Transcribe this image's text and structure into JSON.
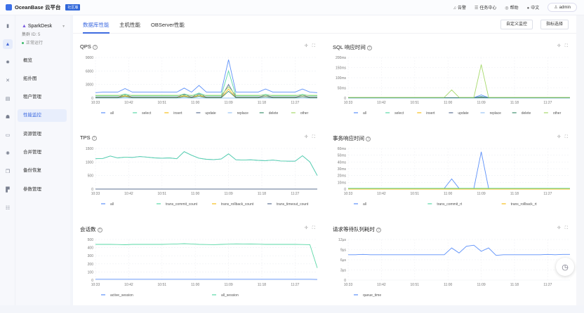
{
  "header": {
    "app_title": "OceanBase 云平台",
    "edition_badge": "社区版",
    "items": [
      {
        "icon": "bell-icon",
        "glyph": "♫",
        "label": "告警"
      },
      {
        "icon": "list-icon",
        "glyph": "☰",
        "label": "任务中心"
      },
      {
        "icon": "help-pin-icon",
        "glyph": "◎",
        "label": "帮助"
      },
      {
        "icon": "globe-icon",
        "glyph": "●",
        "label": "中文"
      }
    ],
    "user": "admin"
  },
  "rail": [
    {
      "icon": "chart-icon",
      "glyph": "▮"
    },
    {
      "icon": "cluster-icon",
      "glyph": "▲",
      "active": true
    },
    {
      "icon": "gear-icon",
      "glyph": "✹"
    },
    {
      "icon": "topology-icon",
      "glyph": "✕"
    },
    {
      "icon": "table-icon",
      "glyph": "▤"
    },
    {
      "icon": "user-icon",
      "glyph": "☗"
    },
    {
      "icon": "storage-icon",
      "glyph": "▭"
    },
    {
      "icon": "settings-icon",
      "glyph": "✺"
    },
    {
      "icon": "copy-icon",
      "glyph": "❐"
    },
    {
      "icon": "doc-icon",
      "glyph": "▛"
    },
    {
      "icon": "sliders-icon",
      "glyph": "☷"
    }
  ],
  "cluster": {
    "name": "SparkDesk",
    "id_label": "集群 ID: 5",
    "status": "正常运行"
  },
  "nav": [
    "概览",
    "拓扑图",
    "租户管理",
    "性能监控",
    "资源管理",
    "合并管理",
    "备份恢复",
    "参数管理"
  ],
  "nav_active": 3,
  "tabs": [
    "数据库性能",
    "主机性能",
    "OBServer性能"
  ],
  "tab_active": 0,
  "buttons": {
    "custom": "自定义监控",
    "metric": "指标选择"
  },
  "x_ticks": [
    "10:33",
    "10:42",
    "10:51",
    "11:00",
    "11:09",
    "11:18",
    "11:27"
  ],
  "chart_data": [
    {
      "type": "line",
      "title": "QPS",
      "ylim": [
        0,
        9000
      ],
      "yticks": [
        0,
        3000,
        6000,
        9000
      ],
      "ytick_labels": [
        "0",
        "3000",
        "6000",
        "9000"
      ],
      "series": [
        {
          "name": "all",
          "color": "#5b8ff9",
          "values": [
            1200,
            1300,
            1300,
            1300,
            2100,
            1300,
            1300,
            1300,
            1300,
            1300,
            1300,
            1300,
            2200,
            1300,
            2800,
            1300,
            1300,
            1300,
            8500,
            1300,
            1300,
            1300,
            1300,
            2000,
            1300,
            1300,
            1300,
            1300,
            2000,
            1300,
            1200
          ]
        },
        {
          "name": "select",
          "color": "#5ad8a6",
          "values": [
            500,
            500,
            500,
            500,
            900,
            500,
            500,
            500,
            500,
            500,
            500,
            500,
            900,
            500,
            1100,
            500,
            500,
            500,
            6000,
            500,
            500,
            500,
            500,
            800,
            500,
            500,
            500,
            500,
            800,
            500,
            500
          ]
        },
        {
          "name": "insert",
          "color": "#f6bd16",
          "values": [
            100,
            100,
            100,
            100,
            500,
            100,
            100,
            100,
            100,
            100,
            100,
            100,
            500,
            100,
            600,
            100,
            100,
            100,
            2000,
            100,
            100,
            100,
            100,
            300,
            100,
            100,
            100,
            100,
            300,
            100,
            100
          ]
        },
        {
          "name": "update",
          "color": "#5d7092",
          "values": [
            200,
            200,
            200,
            200,
            700,
            200,
            200,
            200,
            200,
            200,
            200,
            200,
            800,
            200,
            900,
            200,
            200,
            200,
            3000,
            200,
            200,
            200,
            200,
            600,
            200,
            200,
            200,
            200,
            600,
            200,
            200
          ]
        },
        {
          "name": "replace",
          "color": "#9ac5f5",
          "values": [
            0,
            0,
            0,
            0,
            0,
            0,
            0,
            0,
            0,
            0,
            0,
            0,
            0,
            0,
            0,
            0,
            0,
            0,
            0,
            0,
            0,
            0,
            0,
            0,
            0,
            0,
            0,
            0,
            0,
            0,
            0
          ]
        },
        {
          "name": "delete",
          "color": "#3e8e6e",
          "values": [
            50,
            50,
            50,
            50,
            300,
            50,
            50,
            50,
            50,
            50,
            50,
            50,
            300,
            50,
            400,
            50,
            50,
            50,
            1500,
            50,
            50,
            50,
            50,
            300,
            50,
            50,
            50,
            50,
            300,
            50,
            50
          ]
        },
        {
          "name": "other",
          "color": "#a6d96a",
          "values": [
            600,
            600,
            600,
            600,
            600,
            600,
            600,
            600,
            600,
            600,
            600,
            600,
            600,
            600,
            600,
            600,
            600,
            600,
            2500,
            600,
            600,
            600,
            600,
            600,
            600,
            600,
            600,
            600,
            600,
            600,
            600
          ]
        }
      ]
    },
    {
      "type": "line",
      "title": "SQL 响应时间",
      "ylim": [
        0,
        200
      ],
      "yticks": [
        0,
        50,
        100,
        150,
        200
      ],
      "ytick_labels": [
        "0",
        "50ms",
        "100ms",
        "150ms",
        "200ms"
      ],
      "series": [
        {
          "name": "all",
          "color": "#5b8ff9",
          "values": [
            2,
            2,
            2,
            2,
            2,
            2,
            2,
            2,
            2,
            2,
            2,
            2,
            2,
            2,
            2,
            2,
            2,
            2,
            15,
            2,
            2,
            2,
            2,
            2,
            2,
            2,
            2,
            2,
            2,
            2,
            2
          ]
        },
        {
          "name": "select",
          "color": "#5ad8a6",
          "values": [
            1,
            1,
            1,
            1,
            1,
            1,
            1,
            1,
            1,
            1,
            1,
            1,
            1,
            1,
            1,
            1,
            1,
            1,
            8,
            1,
            1,
            1,
            1,
            1,
            1,
            1,
            1,
            1,
            1,
            1,
            1
          ]
        },
        {
          "name": "insert",
          "color": "#f6bd16",
          "values": [
            1,
            1,
            1,
            1,
            1,
            1,
            1,
            1,
            1,
            1,
            1,
            1,
            1,
            1,
            1,
            1,
            1,
            1,
            1,
            1,
            1,
            1,
            1,
            1,
            1,
            1,
            1,
            1,
            1,
            1,
            1
          ]
        },
        {
          "name": "update",
          "color": "#5d7092",
          "values": [
            2,
            2,
            2,
            2,
            2,
            2,
            2,
            2,
            2,
            2,
            2,
            2,
            2,
            2,
            2,
            2,
            2,
            2,
            5,
            2,
            2,
            2,
            2,
            2,
            2,
            2,
            2,
            2,
            2,
            2,
            2
          ]
        },
        {
          "name": "replace",
          "color": "#9ac5f5",
          "values": [
            0,
            0,
            0,
            0,
            0,
            0,
            0,
            0,
            0,
            0,
            0,
            0,
            0,
            0,
            0,
            0,
            0,
            0,
            0,
            0,
            0,
            0,
            0,
            0,
            0,
            0,
            0,
            0,
            0,
            0,
            0
          ]
        },
        {
          "name": "delete",
          "color": "#3e8e6e",
          "values": [
            1,
            1,
            1,
            1,
            1,
            1,
            1,
            1,
            1,
            1,
            1,
            1,
            1,
            1,
            1,
            1,
            1,
            1,
            1,
            1,
            1,
            1,
            1,
            1,
            1,
            1,
            1,
            1,
            1,
            1,
            1
          ]
        },
        {
          "name": "other",
          "color": "#a6d96a",
          "values": [
            3,
            3,
            3,
            3,
            3,
            3,
            3,
            3,
            3,
            3,
            3,
            3,
            3,
            3,
            40,
            3,
            3,
            3,
            165,
            3,
            3,
            3,
            3,
            3,
            3,
            3,
            3,
            3,
            3,
            3,
            3
          ]
        }
      ]
    },
    {
      "type": "line",
      "title": "TPS",
      "ylim": [
        0,
        1500
      ],
      "yticks": [
        0,
        500,
        1000,
        1500
      ],
      "ytick_labels": [
        "0",
        "500",
        "1000",
        "1500"
      ],
      "series": [
        {
          "name": "all",
          "color": "#5b8ff9",
          "values": [
            1120,
            1130,
            1220,
            1150,
            1180,
            1170,
            1200,
            1180,
            1150,
            1140,
            1150,
            1120,
            1380,
            1250,
            1140,
            1100,
            1090,
            1110,
            1300,
            1080,
            1070,
            1080,
            1060,
            1050,
            1070,
            1040,
            1030,
            1030,
            1230,
            1000,
            500
          ]
        },
        {
          "name": "trans_commit_count",
          "color": "#5ad8a6",
          "values": [
            1120,
            1130,
            1220,
            1150,
            1180,
            1170,
            1200,
            1180,
            1150,
            1140,
            1150,
            1120,
            1380,
            1250,
            1140,
            1100,
            1090,
            1110,
            1300,
            1080,
            1070,
            1080,
            1060,
            1050,
            1070,
            1040,
            1030,
            1030,
            1230,
            1000,
            500
          ]
        },
        {
          "name": "trans_rollback_count",
          "color": "#f6bd16",
          "values": [
            0,
            0,
            0,
            0,
            0,
            0,
            0,
            0,
            0,
            0,
            0,
            0,
            0,
            0,
            0,
            0,
            0,
            0,
            0,
            0,
            0,
            0,
            0,
            0,
            0,
            0,
            0,
            0,
            0,
            0,
            0
          ]
        },
        {
          "name": "trans_timeout_count",
          "color": "#5d7092",
          "values": [
            0,
            0,
            0,
            0,
            0,
            0,
            0,
            0,
            0,
            0,
            0,
            0,
            0,
            0,
            0,
            0,
            0,
            0,
            0,
            0,
            0,
            0,
            0,
            0,
            0,
            0,
            0,
            0,
            0,
            0,
            0
          ]
        }
      ]
    },
    {
      "type": "line",
      "title": "事务响应时间",
      "ylim": [
        0,
        60
      ],
      "yticks": [
        0,
        10,
        20,
        30,
        40,
        50,
        60
      ],
      "ytick_labels": [
        "0",
        "10ms",
        "20ms",
        "30ms",
        "40ms",
        "50ms",
        "60ms"
      ],
      "series": [
        {
          "name": "all",
          "color": "#5b8ff9",
          "values": [
            1,
            1,
            1,
            1,
            1,
            1,
            1,
            1,
            1,
            1,
            1,
            1,
            1,
            1,
            15,
            1,
            1,
            1,
            55,
            1,
            1,
            1,
            1,
            1,
            1,
            1,
            1,
            1,
            1,
            1,
            1
          ]
        },
        {
          "name": "trans_commit_rt",
          "color": "#5ad8a6",
          "values": [
            1,
            1,
            1,
            1,
            1,
            1,
            1,
            1,
            1,
            1,
            1,
            1,
            1,
            1,
            1,
            1,
            1,
            1,
            1,
            1,
            1,
            1,
            1,
            1,
            1,
            1,
            1,
            1,
            1,
            1,
            1
          ]
        },
        {
          "name": "trans_rollback_rt",
          "color": "#f6bd16",
          "values": [
            0,
            0,
            0,
            0,
            0,
            0,
            0,
            0,
            0,
            0,
            0,
            0,
            0,
            0,
            0,
            0,
            0,
            0,
            0,
            0,
            0,
            0,
            0,
            0,
            0,
            0,
            0,
            0,
            0,
            0,
            0
          ]
        }
      ]
    },
    {
      "type": "line",
      "title": "会话数",
      "ylim": [
        0,
        500
      ],
      "yticks": [
        0,
        100,
        200,
        300,
        400,
        500
      ],
      "ytick_labels": [
        "0",
        "100",
        "200",
        "300",
        "400",
        "500"
      ],
      "series": [
        {
          "name": "active_session",
          "color": "#5b8ff9",
          "values": [
            10,
            10,
            10,
            10,
            10,
            10,
            10,
            10,
            10,
            10,
            10,
            10,
            10,
            10,
            10,
            10,
            10,
            10,
            10,
            10,
            10,
            10,
            10,
            10,
            10,
            10,
            10,
            10,
            10,
            10,
            8
          ]
        },
        {
          "name": "all_session",
          "color": "#5ad8a6",
          "values": [
            440,
            440,
            440,
            438,
            435,
            440,
            440,
            440,
            440,
            440,
            442,
            445,
            448,
            445,
            440,
            438,
            436,
            440,
            442,
            446,
            445,
            444,
            442,
            440,
            440,
            440,
            440,
            440,
            438,
            436,
            150
          ]
        }
      ]
    },
    {
      "type": "line",
      "title": "请求等待队列耗时",
      "ylim": [
        0,
        12
      ],
      "yticks": [
        0,
        3,
        6,
        9,
        12
      ],
      "ytick_labels": [
        "0",
        "3μs",
        "6μs",
        "9μs",
        "12μs"
      ],
      "series": [
        {
          "name": "queue_time",
          "color": "#5b8ff9",
          "values": [
            7.5,
            7.5,
            7.6,
            7.5,
            7.5,
            7.5,
            7.5,
            7.5,
            7.5,
            7.5,
            7.5,
            7.5,
            7.5,
            7.5,
            9.5,
            8,
            10,
            10.3,
            8.5,
            9.5,
            7.3,
            7.5,
            7.5,
            7.5,
            7.5,
            7.5,
            7.5,
            7.6,
            7.5,
            7.6,
            7.6
          ]
        }
      ]
    }
  ]
}
